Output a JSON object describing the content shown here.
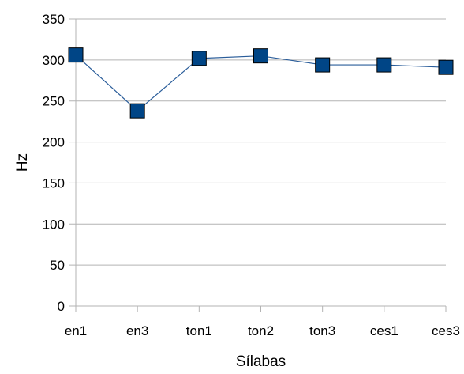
{
  "chart_data": {
    "type": "line",
    "title": "",
    "xlabel": "Sílabas",
    "ylabel": "Hz",
    "categories": [
      "en1",
      "en3",
      "ton1",
      "ton2",
      "ton3",
      "ces1",
      "ces3"
    ],
    "series": [
      {
        "values": [
          306,
          238,
          302,
          305,
          294,
          294,
          291
        ]
      }
    ],
    "ylim": [
      0,
      350
    ],
    "yticks": [
      0,
      50,
      100,
      150,
      200,
      250,
      300,
      350
    ],
    "grid": true,
    "legend": "none",
    "colors": {
      "line": "#2a5d9a",
      "marker_fill": "#004586",
      "marker_stroke": "#000000",
      "grid": "#b3b3b3",
      "axis": "#b3b3b3"
    }
  }
}
